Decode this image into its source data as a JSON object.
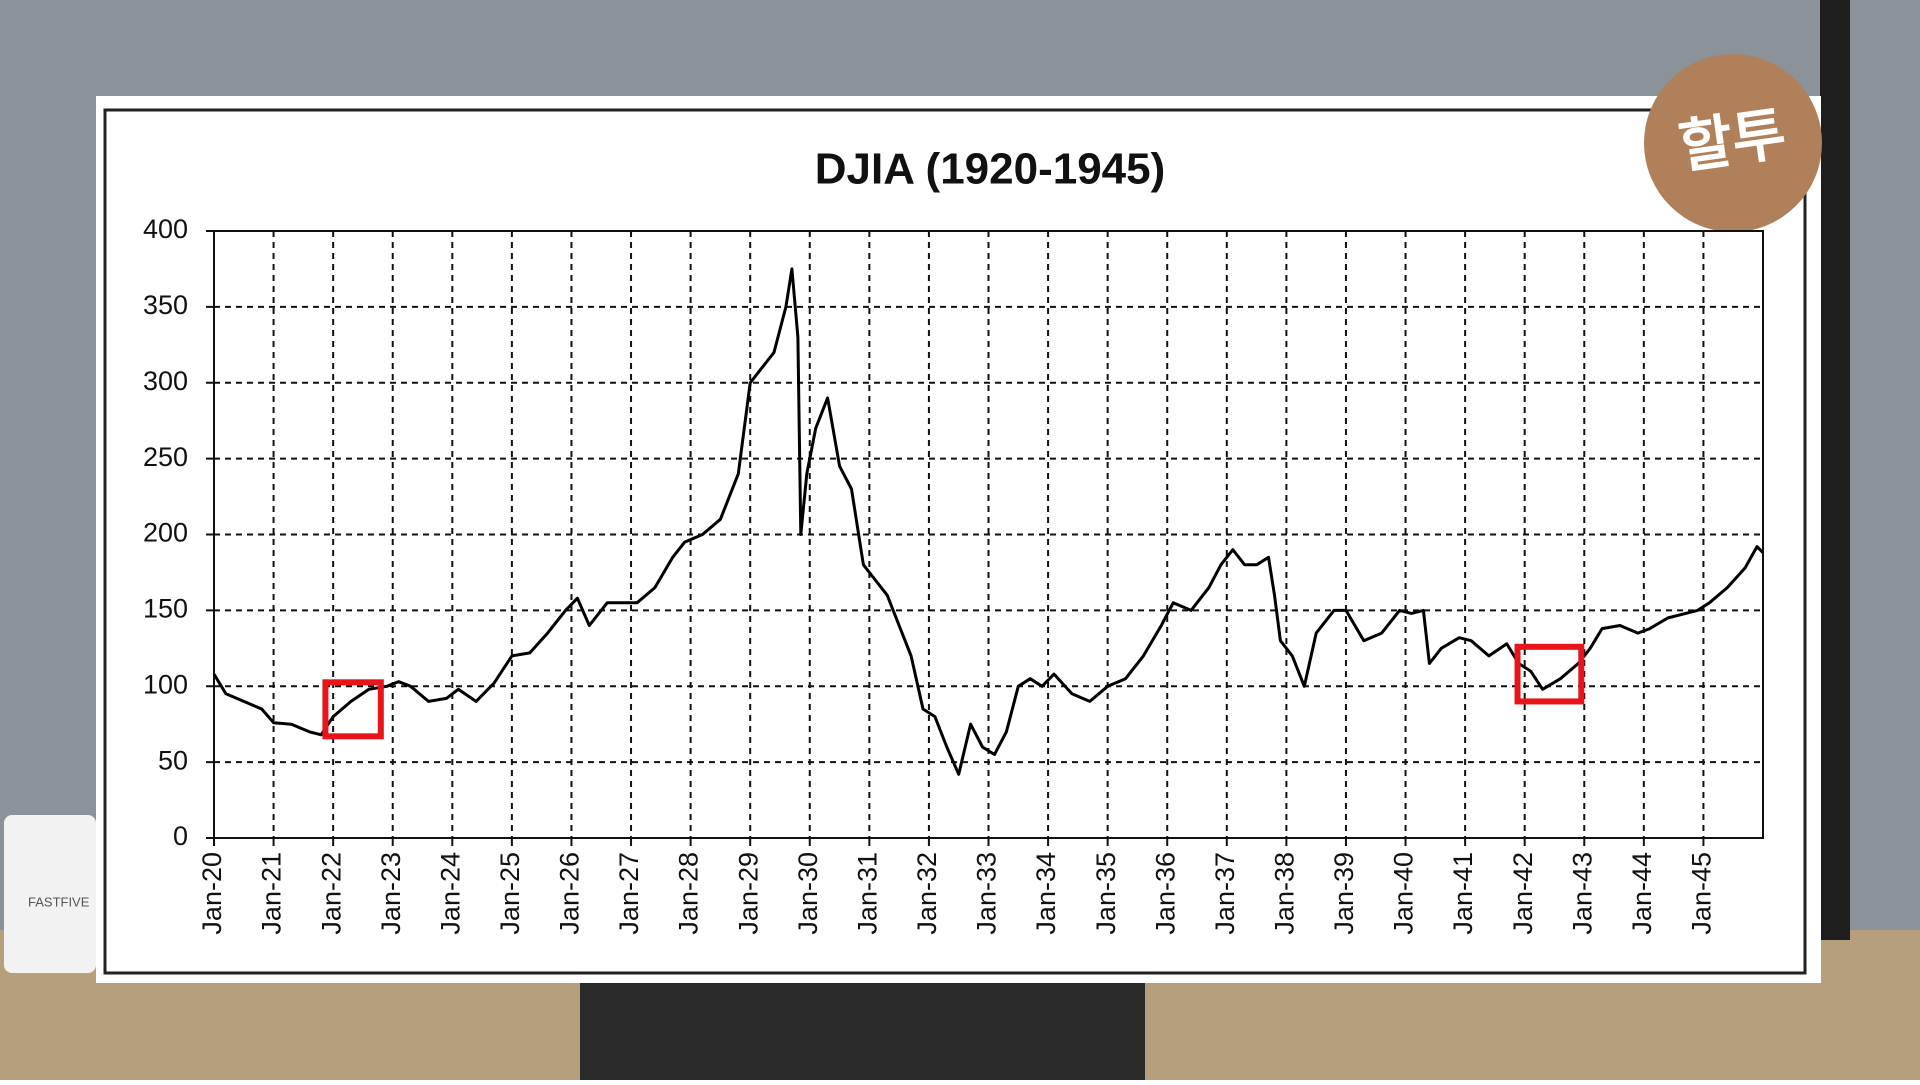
{
  "chart_data": {
    "type": "line",
    "title": "DJIA (1920-1945)",
    "x": [
      1920.0,
      1920.2,
      1920.5,
      1920.8,
      1921.0,
      1921.3,
      1921.6,
      1921.8,
      1922.0,
      1922.3,
      1922.6,
      1922.9,
      1923.1,
      1923.3,
      1923.6,
      1923.9,
      1924.1,
      1924.4,
      1924.7,
      1925.0,
      1925.3,
      1925.6,
      1925.9,
      1926.1,
      1926.3,
      1926.6,
      1926.9,
      1927.1,
      1927.4,
      1927.7,
      1927.9,
      1928.2,
      1928.5,
      1928.8,
      1929.0,
      1929.2,
      1929.4,
      1929.6,
      1929.7,
      1929.8,
      1929.85,
      1929.95,
      1930.1,
      1930.3,
      1930.5,
      1930.7,
      1930.9,
      1931.1,
      1931.3,
      1931.5,
      1931.7,
      1931.9,
      1932.1,
      1932.3,
      1932.5,
      1932.7,
      1932.9,
      1933.1,
      1933.3,
      1933.5,
      1933.7,
      1933.9,
      1934.1,
      1934.4,
      1934.7,
      1935.0,
      1935.3,
      1935.6,
      1935.9,
      1936.1,
      1936.4,
      1936.7,
      1936.9,
      1937.1,
      1937.3,
      1937.5,
      1937.7,
      1937.8,
      1937.9,
      1938.1,
      1938.3,
      1938.5,
      1938.8,
      1939.0,
      1939.3,
      1939.6,
      1939.9,
      1940.1,
      1940.3,
      1940.4,
      1940.6,
      1940.9,
      1941.1,
      1941.4,
      1941.7,
      1941.9,
      1942.1,
      1942.3,
      1942.6,
      1942.9,
      1943.1,
      1943.3,
      1943.6,
      1943.9,
      1944.1,
      1944.4,
      1944.7,
      1944.9,
      1945.1,
      1945.4,
      1945.7,
      1945.9,
      1946.0
    ],
    "series": [
      {
        "name": "DJIA",
        "color": "#000000",
        "values": [
          108,
          95,
          90,
          85,
          76,
          75,
          70,
          68,
          80,
          90,
          98,
          100,
          103,
          100,
          90,
          92,
          98,
          90,
          102,
          120,
          122,
          135,
          150,
          158,
          140,
          155,
          155,
          155,
          165,
          185,
          195,
          200,
          210,
          240,
          300,
          310,
          320,
          350,
          375,
          330,
          200,
          240,
          270,
          290,
          245,
          230,
          180,
          170,
          160,
          140,
          120,
          85,
          80,
          60,
          42,
          75,
          60,
          55,
          70,
          100,
          105,
          100,
          108,
          95,
          90,
          100,
          105,
          120,
          140,
          155,
          150,
          165,
          180,
          190,
          180,
          180,
          185,
          160,
          130,
          120,
          100,
          135,
          150,
          150,
          130,
          135,
          150,
          148,
          150,
          115,
          125,
          132,
          130,
          120,
          128,
          115,
          110,
          98,
          105,
          115,
          125,
          138,
          140,
          135,
          138,
          145,
          148,
          150,
          155,
          165,
          178,
          192,
          188
        ]
      }
    ],
    "xlim": [
      1920,
      1946
    ],
    "xticks": [
      {
        "value": 1920,
        "label": "Jan-20"
      },
      {
        "value": 1921,
        "label": "Jan-21"
      },
      {
        "value": 1922,
        "label": "Jan-22"
      },
      {
        "value": 1923,
        "label": "Jan-23"
      },
      {
        "value": 1924,
        "label": "Jan-24"
      },
      {
        "value": 1925,
        "label": "Jan-25"
      },
      {
        "value": 1926,
        "label": "Jan-26"
      },
      {
        "value": 1927,
        "label": "Jan-27"
      },
      {
        "value": 1928,
        "label": "Jan-28"
      },
      {
        "value": 1929,
        "label": "Jan-29"
      },
      {
        "value": 1930,
        "label": "Jan-30"
      },
      {
        "value": 1931,
        "label": "Jan-31"
      },
      {
        "value": 1932,
        "label": "Jan-32"
      },
      {
        "value": 1933,
        "label": "Jan-33"
      },
      {
        "value": 1934,
        "label": "Jan-34"
      },
      {
        "value": 1935,
        "label": "Jan-35"
      },
      {
        "value": 1936,
        "label": "Jan-36"
      },
      {
        "value": 1937,
        "label": "Jan-37"
      },
      {
        "value": 1938,
        "label": "Jan-38"
      },
      {
        "value": 1939,
        "label": "Jan-39"
      },
      {
        "value": 1940,
        "label": "Jan-40"
      },
      {
        "value": 1941,
        "label": "Jan-41"
      },
      {
        "value": 1942,
        "label": "Jan-42"
      },
      {
        "value": 1943,
        "label": "Jan-43"
      },
      {
        "value": 1944,
        "label": "Jan-44"
      },
      {
        "value": 1945,
        "label": "Jan-45"
      }
    ],
    "ylim": [
      0,
      400
    ],
    "yticks": [
      0,
      50,
      100,
      150,
      200,
      250,
      300,
      350,
      400
    ],
    "grid": true,
    "highlight_boxes": [
      {
        "x": [
          1921.87,
          1922.8
        ],
        "y": [
          67,
          102.6
        ],
        "color": "#e8141c"
      },
      {
        "x": [
          1941.88,
          1942.95
        ],
        "y": [
          90,
          126
        ],
        "color": "#e8141c"
      }
    ]
  },
  "logo_text": "할투",
  "cup_text": "FASTFIVE"
}
